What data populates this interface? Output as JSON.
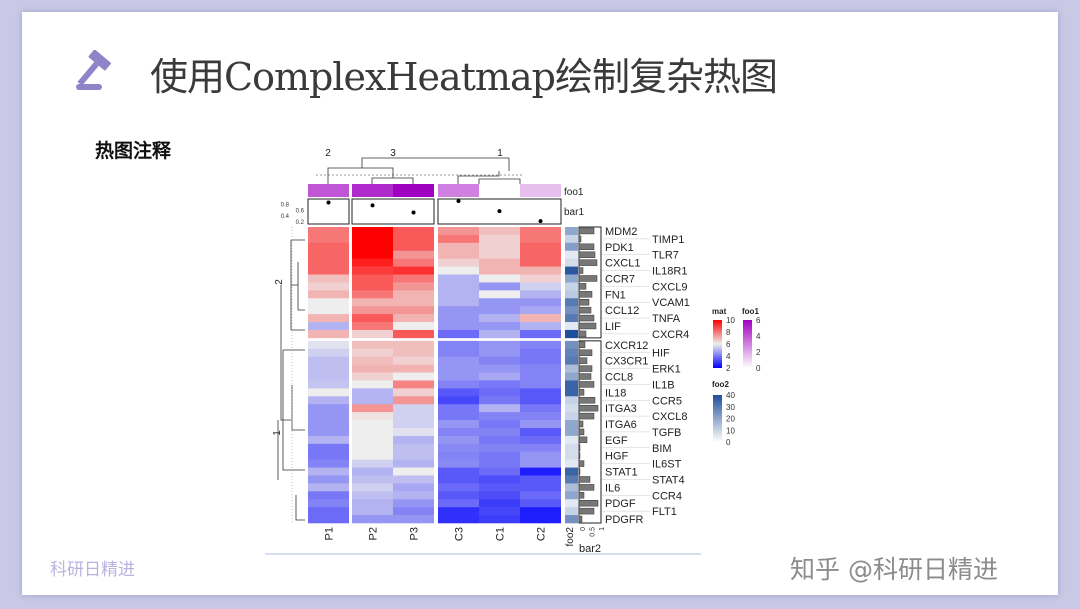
{
  "slide": {
    "title": "使用ComplexHeatmap绘制复杂热图",
    "subtitle": "热图注释",
    "watermark_left": "科研日精进",
    "watermark_right": "知乎 @科研日精进",
    "icon": "gavel-icon",
    "accent": "#8f84c8"
  },
  "chart_data": {
    "type": "heatmap",
    "columns": [
      "P1",
      "P2",
      "P3",
      "C3",
      "C1",
      "C2"
    ],
    "column_splits": [
      {
        "label": "2",
        "columns": [
          "P1"
        ]
      },
      {
        "label": "3",
        "columns": [
          "P2",
          "P3"
        ]
      },
      {
        "label": "1",
        "columns": [
          "C3",
          "C1",
          "C2"
        ]
      }
    ],
    "row_splits": [
      {
        "label": "2",
        "rows": 14
      },
      {
        "label": "1",
        "rows": 23
      }
    ],
    "rows": [
      "MDM2",
      "TIMP1",
      "PDK1",
      "TLR7",
      "CXCL1",
      "IL18R1",
      "CCR7",
      "CXCL9",
      "FN1",
      "VCAM1",
      "CCL12",
      "TNFA",
      "LIF",
      "CXCR4",
      "CXCR12",
      "HIF",
      "CX3CR1",
      "ERK1",
      "CCL8",
      "IL1B",
      "IL18",
      "CCR5",
      "ITGA3",
      "CXCL8",
      "ITGA6",
      "TGFB",
      "EGF",
      "BIM",
      "HGF",
      "IL6ST",
      "STAT1",
      "STAT4",
      "IL6",
      "CCR4",
      "PDGF",
      "FLT1",
      "PDGFR"
    ],
    "values": [
      [
        8,
        10,
        8.5,
        7.5,
        6.8,
        8
      ],
      [
        8,
        10,
        8.5,
        8,
        6.5,
        8
      ],
      [
        8.3,
        10,
        8.5,
        7,
        6.5,
        8.3
      ],
      [
        8.3,
        10,
        7.5,
        7,
        6.5,
        8.3
      ],
      [
        8.3,
        9.5,
        8,
        6.5,
        7,
        8.3
      ],
      [
        8.3,
        9,
        9.2,
        6,
        7,
        7
      ],
      [
        6.8,
        8.5,
        8,
        5,
        6,
        6.5
      ],
      [
        6.5,
        8.5,
        7.5,
        5,
        4.5,
        5.5
      ],
      [
        7,
        8,
        7,
        5,
        6,
        5
      ],
      [
        6,
        7,
        7,
        5,
        4.5,
        4.5
      ],
      [
        6,
        7.5,
        7.5,
        4.5,
        4.5,
        4.8
      ],
      [
        7,
        8.5,
        7,
        4.5,
        5,
        7
      ],
      [
        5,
        8,
        6,
        4.5,
        4.5,
        5
      ],
      [
        7,
        6.5,
        8.5,
        3.8,
        5,
        3.8
      ],
      [
        5.8,
        6.8,
        6.8,
        4.2,
        4.5,
        4.2
      ],
      [
        5.5,
        6.5,
        6.8,
        4.2,
        4.5,
        4
      ],
      [
        5.2,
        6.8,
        6.5,
        4.5,
        4.2,
        4
      ],
      [
        5.2,
        7,
        7,
        4.5,
        4.5,
        4.2
      ],
      [
        5.2,
        6.5,
        6,
        4.5,
        4.8,
        4.2
      ],
      [
        5.3,
        6,
        7.8,
        4.2,
        4,
        4.2
      ],
      [
        6,
        5,
        6.5,
        3.5,
        3.8,
        3.5
      ],
      [
        5,
        5,
        7.5,
        3.2,
        4,
        3.5
      ],
      [
        4.5,
        7.5,
        5.5,
        4,
        5,
        4
      ],
      [
        4.5,
        6.2,
        5.5,
        4,
        4.2,
        4.2
      ],
      [
        4.5,
        6,
        5.5,
        4.5,
        4,
        4.5
      ],
      [
        4.5,
        6,
        5.8,
        4.2,
        4.2,
        3.5
      ],
      [
        5,
        6,
        5,
        4.5,
        4,
        3.8
      ],
      [
        4,
        6,
        5.2,
        4.3,
        4.2,
        4.2
      ],
      [
        4,
        6,
        5.2,
        4.2,
        4,
        4.5
      ],
      [
        4.2,
        5.5,
        5,
        4.3,
        4,
        4.5
      ],
      [
        5,
        5,
        6,
        3.5,
        3.8,
        2.5
      ],
      [
        4.5,
        5.2,
        5.2,
        3.5,
        3.3,
        3.5
      ],
      [
        5,
        5.5,
        4.8,
        3.8,
        3.5,
        3.5
      ],
      [
        4,
        5.2,
        5,
        3.5,
        3.3,
        3.8
      ],
      [
        4.2,
        5,
        4.5,
        3.8,
        3,
        3.5
      ],
      [
        3.8,
        5,
        4.2,
        2.8,
        3.2,
        2.5
      ],
      [
        3.8,
        4.5,
        4.5,
        2.8,
        3,
        2.5
      ]
    ],
    "top_annotations": {
      "foo1": {
        "label": "foo1",
        "values": [
          4,
          5,
          6,
          3,
          0,
          1.5
        ]
      },
      "bar1": {
        "label": "bar1",
        "values": [
          0.85,
          0.75,
          0.5,
          0.9,
          0.55,
          0.2
        ],
        "ticks": [
          "0.2",
          "0.4",
          "0.6",
          "0.8"
        ]
      }
    },
    "right_annotations": {
      "foo2": {
        "label": "foo2",
        "values": [
          20,
          10,
          22,
          5,
          8,
          38,
          20,
          10,
          12,
          30,
          25,
          30,
          5,
          42,
          25,
          28,
          30,
          15,
          20,
          35,
          35,
          10,
          8,
          10,
          20,
          20,
          5,
          8,
          8,
          5,
          35,
          30,
          15,
          20,
          5,
          10,
          25
        ]
      },
      "bar2": {
        "label": "bar2",
        "values": [
          0.75,
          0.1,
          0.75,
          0.8,
          0.9,
          0.2,
          0.9,
          0.35,
          0.65,
          0.5,
          0.6,
          0.75,
          0.85,
          0.35,
          0.3,
          0.65,
          0.4,
          0.65,
          0.6,
          0.75,
          0.25,
          0.8,
          0.95,
          0.75,
          0.2,
          0.25,
          0.4,
          0.05,
          0.05,
          0.25,
          0.05,
          0.55,
          0.75,
          0.25,
          0.95,
          0.75,
          0.15
        ],
        "ticks": [
          "0",
          "0.5",
          "1"
        ]
      }
    },
    "legends": {
      "mat": {
        "title": "mat",
        "ticks": [
          "10",
          "8",
          "6",
          "4",
          "2"
        ],
        "range": [
          2,
          10
        ],
        "colors": [
          "#0000ff",
          "#eeeeee",
          "#ff0000"
        ]
      },
      "foo1": {
        "title": "foo1",
        "ticks": [
          "6",
          "4",
          "2",
          "0"
        ],
        "range": [
          0,
          6
        ],
        "colors": [
          "#ffffff",
          "#a000c0"
        ]
      },
      "foo2": {
        "title": "foo2",
        "ticks": [
          "40",
          "30",
          "20",
          "10",
          "0"
        ],
        "range": [
          0,
          40
        ],
        "colors": [
          "#ffffff",
          "#1f4e9a"
        ]
      }
    }
  }
}
